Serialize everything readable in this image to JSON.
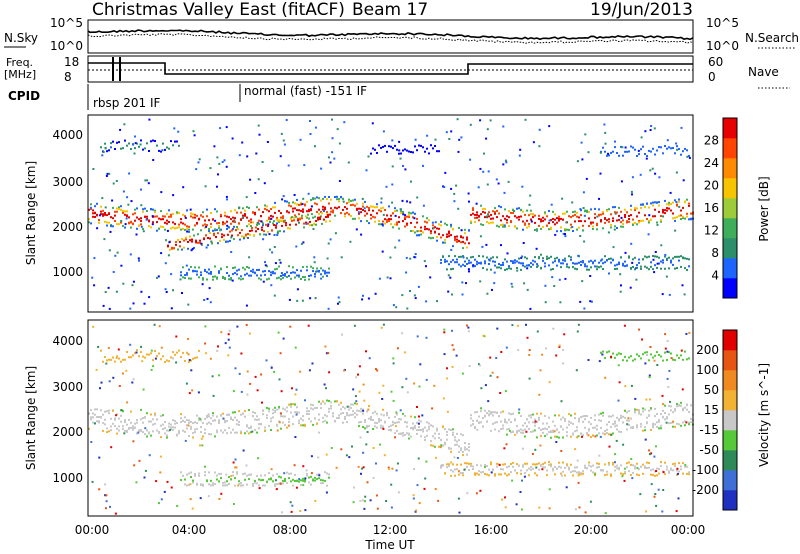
{
  "header": {
    "site": "Christmas Valley East (fitACF)",
    "beam": "Beam 17",
    "date": "19/Jun/2013"
  },
  "top_panels": {
    "nsky_label": "N.Sky",
    "nsearch_label": "N.Search",
    "nsky_ticks": [
      "10^5",
      "10^0"
    ],
    "nsearch_ticks": [
      "10^5",
      "10^0"
    ],
    "freq_label": [
      "Freq.",
      "[MHz]"
    ],
    "freq_ticks": [
      "18",
      "8"
    ],
    "nave_label": "Nave",
    "nave_ticks": [
      "60",
      "0"
    ],
    "cpid_label": "CPID",
    "cpid_entries": [
      "rbsp 201 IF",
      "normal (fast) -151 IF"
    ]
  },
  "chart_data": [
    {
      "type": "heatmap",
      "name": "power",
      "ylabel": "Slant Range [km]",
      "yticks": [
        "4000",
        "3000",
        "2000",
        "1000"
      ],
      "colorbar_label": "Power [dB]",
      "colorbar_ticks": [
        "28",
        "24",
        "20",
        "16",
        "12",
        "8",
        "4"
      ],
      "colors": [
        "#0000ff",
        "#1e64ff",
        "#2a8f6a",
        "#3fae5a",
        "#9ecb3a",
        "#f7c500",
        "#ff8a00",
        "#ff4500",
        "#e60000"
      ]
    },
    {
      "type": "heatmap",
      "name": "velocity",
      "ylabel": "Slant Range [km]",
      "yticks": [
        "4000",
        "3000",
        "2000",
        "1000"
      ],
      "colorbar_label": "Velocity [m s^-1]",
      "colorbar_ticks": [
        "200",
        "100",
        "50",
        "15",
        "-15",
        "-50",
        "-100",
        "-200"
      ],
      "colors": [
        "#1f2fbf",
        "#3d6fd6",
        "#2e8b57",
        "#55c93a",
        "#c8c8c8",
        "#f2b233",
        "#f08a20",
        "#e85510",
        "#e00000"
      ]
    }
  ],
  "xaxis": {
    "label": "Time UT",
    "ticks": [
      "00:00",
      "04:00",
      "08:00",
      "12:00",
      "16:00",
      "20:00",
      "00:00"
    ]
  }
}
